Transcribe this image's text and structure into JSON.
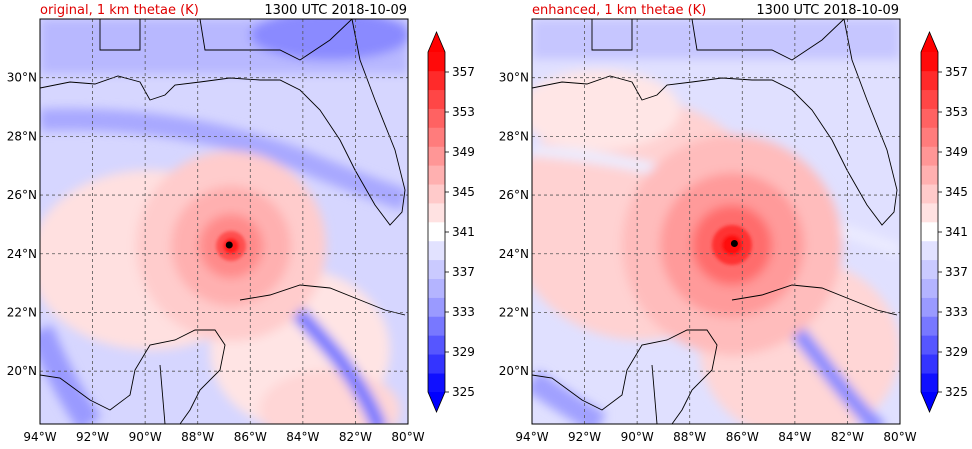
{
  "panels": [
    {
      "title": "original, 1 km thetae (K)",
      "time": "1300 UTC 2018-10-09",
      "storm_center": {
        "lon": -86.8,
        "lat": 24.3
      },
      "core_strength": 0.75
    },
    {
      "title": "enhanced, 1 km thetae (K)",
      "time": "1300 UTC 2018-10-09",
      "storm_center": {
        "lon": -86.3,
        "lat": 24.35
      },
      "core_strength": 1.0
    }
  ],
  "map": {
    "lon_range": [
      -94,
      -80
    ],
    "lat_range": [
      18.2,
      32.0
    ],
    "lon_ticks": [
      -94,
      -92,
      -90,
      -88,
      -86,
      -84,
      -82,
      -80
    ],
    "lat_ticks": [
      20,
      22,
      24,
      26,
      28,
      30
    ],
    "lon_tick_labels": [
      "94°W",
      "92°W",
      "90°W",
      "88°W",
      "86°W",
      "84°W",
      "82°W",
      "80°W"
    ],
    "lat_tick_labels": [
      "20°N",
      "22°N",
      "24°N",
      "26°N",
      "28°N",
      "30°N"
    ]
  },
  "colorbar": {
    "levels": [
      325,
      327,
      329,
      331,
      333,
      335,
      337,
      339,
      341,
      343,
      345,
      347,
      349,
      351,
      353,
      355,
      357,
      359
    ],
    "tick_labels": [
      "325",
      "329",
      "333",
      "337",
      "341",
      "345",
      "349",
      "353",
      "357"
    ],
    "colors": [
      "#1010ff",
      "#3434ff",
      "#5656ff",
      "#7878ff",
      "#9a9aff",
      "#b4b4ff",
      "#cacaff",
      "#e2e2ff",
      "#ffffff",
      "#ffe2e2",
      "#ffcaca",
      "#ffb0b0",
      "#ff9696",
      "#ff7c7c",
      "#ff6262",
      "#ff4646",
      "#ff2a2a",
      "#ff0a0a"
    ],
    "under_color": "#0000ff",
    "over_color": "#ff0000"
  }
}
